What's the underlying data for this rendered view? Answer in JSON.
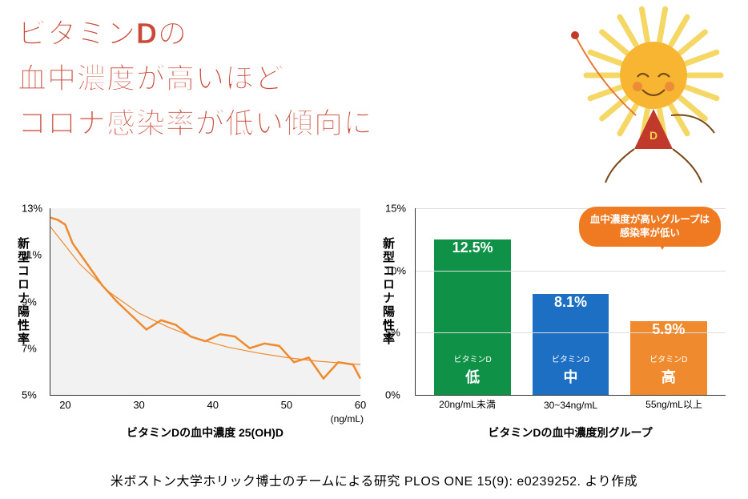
{
  "title_lines": [
    "ビタミンDの",
    "血中濃度が高いほど",
    "コロナ感染率が低い傾向に"
  ],
  "title_color": "#c94a3a",
  "sun": {
    "rays": "#f3d14a",
    "face": "#f7b531",
    "cheeks": "#e57a3a",
    "dress": "#c0392b",
    "wand": "#e57a3a",
    "badge": "D"
  },
  "line_chart": {
    "type": "line",
    "y_label": "新型コロナ陽性率",
    "x_label": "ビタミンDの血中濃度 25(OH)D",
    "x_unit": "(ng/mL)",
    "xlim": [
      18,
      60
    ],
    "ylim": [
      5,
      13
    ],
    "yticks": [
      5,
      7,
      9,
      11,
      13
    ],
    "ytick_labels": [
      "5%",
      "7%",
      "9%",
      "11%",
      "13%"
    ],
    "xticks": [
      20,
      30,
      40,
      50,
      60
    ],
    "xtick_labels": [
      "20",
      "30",
      "40",
      "50",
      "60"
    ],
    "background": "#f2f2f2",
    "line_color": "#ef8a2e",
    "data_points": [
      [
        18,
        12.6
      ],
      [
        19,
        12.5
      ],
      [
        20,
        12.3
      ],
      [
        21,
        11.5
      ],
      [
        23,
        10.6
      ],
      [
        25,
        9.7
      ],
      [
        27,
        9.0
      ],
      [
        29,
        8.4
      ],
      [
        31,
        7.8
      ],
      [
        33,
        8.2
      ],
      [
        35,
        8.0
      ],
      [
        37,
        7.5
      ],
      [
        39,
        7.3
      ],
      [
        41,
        7.6
      ],
      [
        43,
        7.5
      ],
      [
        45,
        7.0
      ],
      [
        47,
        7.2
      ],
      [
        49,
        7.1
      ],
      [
        51,
        6.4
      ],
      [
        53,
        6.6
      ],
      [
        55,
        5.7
      ],
      [
        57,
        6.4
      ],
      [
        59,
        6.3
      ],
      [
        60,
        5.7
      ]
    ],
    "trend_points": [
      [
        18,
        12.2
      ],
      [
        22,
        10.6
      ],
      [
        26,
        9.4
      ],
      [
        30,
        8.5
      ],
      [
        34,
        7.9
      ],
      [
        38,
        7.4
      ],
      [
        42,
        7.05
      ],
      [
        46,
        6.8
      ],
      [
        50,
        6.6
      ],
      [
        54,
        6.45
      ],
      [
        58,
        6.35
      ],
      [
        60,
        6.3
      ]
    ]
  },
  "bar_chart": {
    "type": "bar",
    "y_label": "新型コロナ陽性率",
    "x_label": "ビタミンDの血中濃度別グループ",
    "ylim": [
      0,
      15
    ],
    "yticks": [
      0,
      5,
      10,
      15
    ],
    "ytick_labels": [
      "0%",
      "5%",
      "10%",
      "15%"
    ],
    "grid_color": "#dddddd",
    "categories": [
      "20ng/mL未満",
      "30~34ng/mL",
      "55ng/mL以上"
    ],
    "bars": [
      {
        "value": 12.5,
        "value_label": "12.5%",
        "label_top": "ビタミンD",
        "label_main": "低",
        "color": "#0f9247"
      },
      {
        "value": 8.1,
        "value_label": "8.1%",
        "label_top": "ビタミンD",
        "label_main": "中",
        "color": "#1d6fc4"
      },
      {
        "value": 5.9,
        "value_label": "5.9%",
        "label_top": "ビタミンD",
        "label_main": "高",
        "color": "#ef8a2e"
      }
    ],
    "callout": {
      "text_l1": "血中濃度が高いグループは",
      "text_l2": "感染率が低い",
      "bg": "#ef7a22"
    }
  },
  "footer": "米ボストン大学ホリック博士のチームによる研究 PLOS ONE 15(9): e0239252. より作成"
}
